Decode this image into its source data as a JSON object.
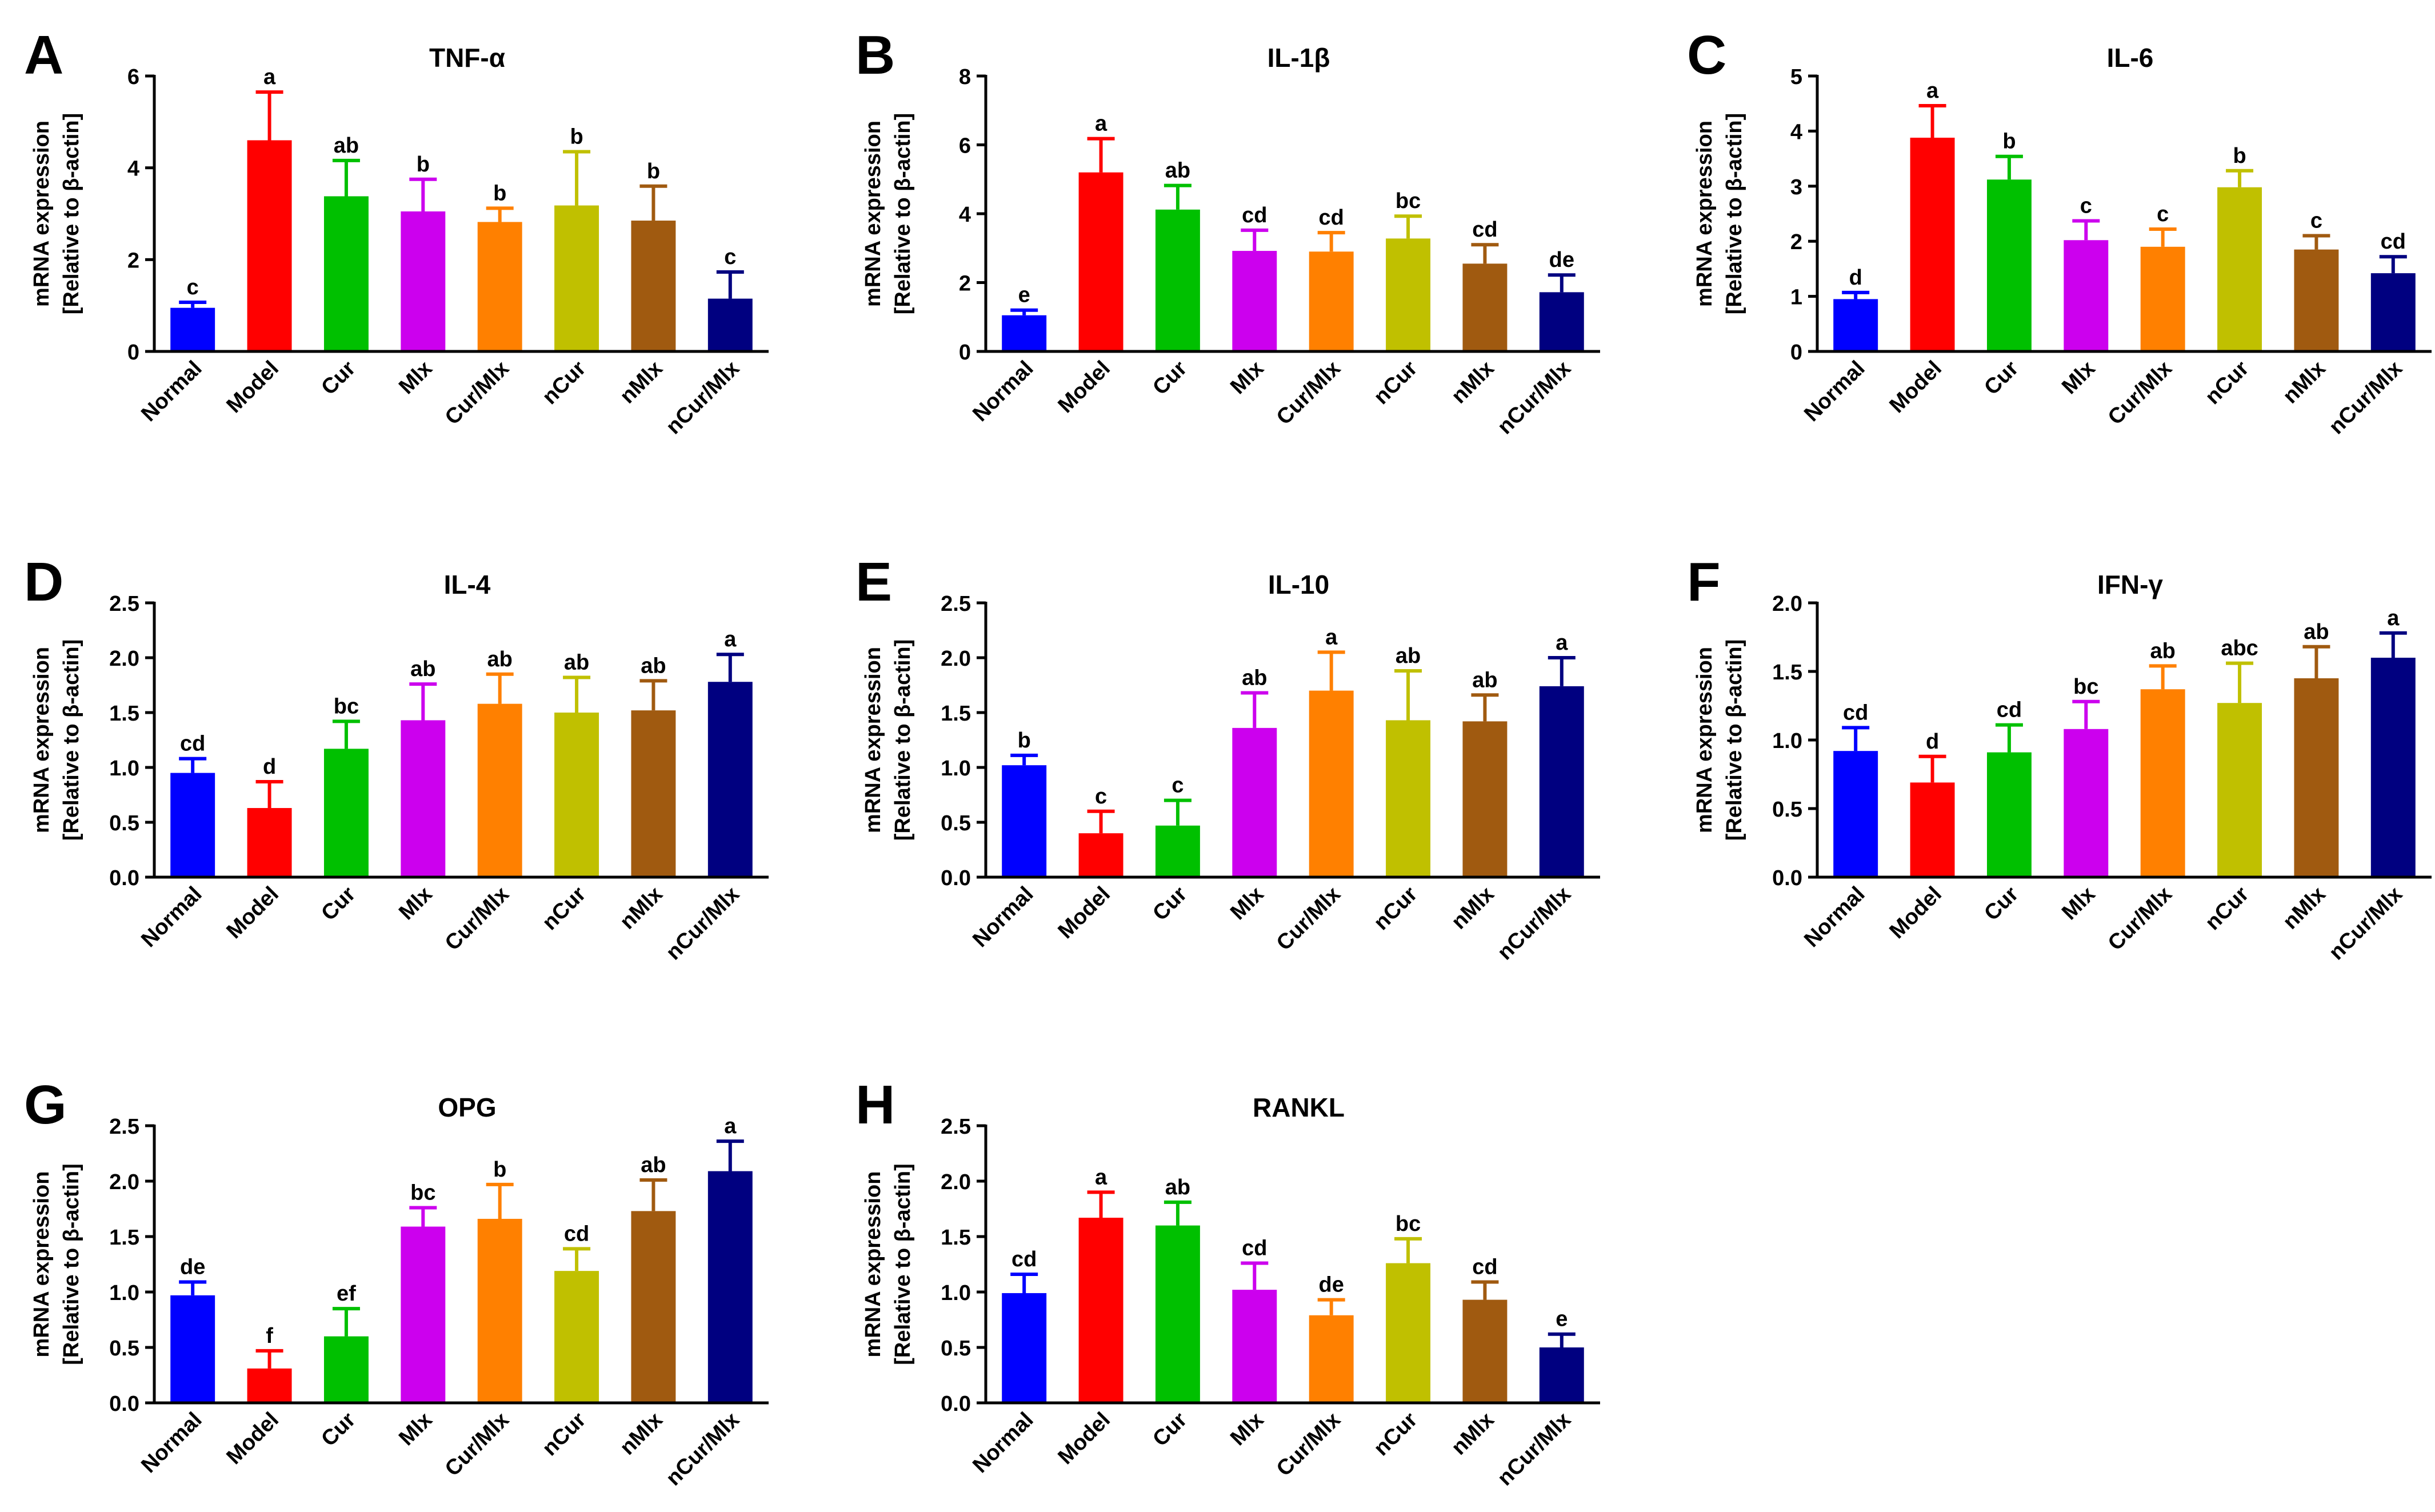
{
  "figure": {
    "description_categories": [
      "Normal",
      "Model",
      "Cur",
      "Mlx",
      "Cur/Mlx",
      "nCur",
      "nMlx",
      "nCur/Mlx"
    ],
    "bar_colors": [
      "#0000FF",
      "#FF0000",
      "#00C000",
      "#CC00EE",
      "#FF8000",
      "#C0C000",
      "#A05A10",
      "#000080"
    ]
  },
  "chart_data": [
    {
      "type": "bar",
      "panel": "A",
      "title": "TNF-α",
      "ylabel": [
        "mRNA expression",
        "[Relative to β-actin]"
      ],
      "categories": [
        "Normal",
        "Model",
        "Cur",
        "Mlx",
        "Cur/Mlx",
        "nCur",
        "nMlx",
        "nCur/Mlx"
      ],
      "ylim": [
        0,
        6
      ],
      "yticks": [
        0,
        2,
        4,
        6
      ],
      "ytick_labels": [
        "0",
        "2",
        "4",
        "6"
      ],
      "values": [
        0.95,
        4.6,
        3.38,
        3.05,
        2.82,
        3.18,
        2.85,
        1.15
      ],
      "errors": [
        0.12,
        1.05,
        0.78,
        0.7,
        0.3,
        1.17,
        0.75,
        0.58
      ],
      "letters": [
        "c",
        "a",
        "ab",
        "b",
        "b",
        "b",
        "b",
        "c"
      ]
    },
    {
      "type": "bar",
      "panel": "B",
      "title": "IL-1β",
      "ylabel": [
        "mRNA expression",
        "[Relative to β-actin]"
      ],
      "categories": [
        "Normal",
        "Model",
        "Cur",
        "Mlx",
        "Cur/Mlx",
        "nCur",
        "nMlx",
        "nCur/Mlx"
      ],
      "ylim": [
        0,
        8
      ],
      "yticks": [
        0,
        2,
        4,
        6,
        8
      ],
      "ytick_labels": [
        "0",
        "2",
        "4",
        "6",
        "8"
      ],
      "values": [
        1.05,
        5.2,
        4.12,
        2.92,
        2.9,
        3.28,
        2.55,
        1.72
      ],
      "errors": [
        0.15,
        0.98,
        0.7,
        0.6,
        0.55,
        0.65,
        0.55,
        0.5
      ],
      "letters": [
        "e",
        "a",
        "ab",
        "cd",
        "cd",
        "bc",
        "cd",
        "de"
      ]
    },
    {
      "type": "bar",
      "panel": "C",
      "title": "IL-6",
      "ylabel": [
        "mRNA expression",
        "[Relative to β-actin]"
      ],
      "categories": [
        "Normal",
        "Model",
        "Cur",
        "Mlx",
        "Cur/Mlx",
        "nCur",
        "nMlx",
        "nCur/Mlx"
      ],
      "ylim": [
        0,
        5
      ],
      "yticks": [
        0,
        1,
        2,
        3,
        4,
        5
      ],
      "ytick_labels": [
        "0",
        "1",
        "2",
        "3",
        "4",
        "5"
      ],
      "values": [
        0.95,
        3.88,
        3.12,
        2.02,
        1.9,
        2.98,
        1.85,
        1.42
      ],
      "errors": [
        0.12,
        0.58,
        0.42,
        0.35,
        0.32,
        0.3,
        0.25,
        0.3
      ],
      "letters": [
        "d",
        "a",
        "b",
        "c",
        "c",
        "b",
        "c",
        "cd"
      ]
    },
    {
      "type": "bar",
      "panel": "D",
      "title": "IL-4",
      "ylabel": [
        "mRNA expression",
        "[Relative to β-actin]"
      ],
      "categories": [
        "Normal",
        "Model",
        "Cur",
        "Mlx",
        "Cur/Mlx",
        "nCur",
        "nMlx",
        "nCur/Mlx"
      ],
      "ylim": [
        0,
        2.5
      ],
      "yticks": [
        0,
        0.5,
        1,
        1.5,
        2,
        2.5
      ],
      "ytick_labels": [
        "0.0",
        "0.5",
        "1.0",
        "1.5",
        "2.0",
        "2.5"
      ],
      "values": [
        0.95,
        0.63,
        1.17,
        1.43,
        1.58,
        1.5,
        1.52,
        1.78
      ],
      "errors": [
        0.13,
        0.24,
        0.25,
        0.33,
        0.27,
        0.32,
        0.27,
        0.25
      ],
      "letters": [
        "cd",
        "d",
        "bc",
        "ab",
        "ab",
        "ab",
        "ab",
        "a"
      ]
    },
    {
      "type": "bar",
      "panel": "E",
      "title": "IL-10",
      "ylabel": [
        "mRNA expression",
        "[Relative to β-actin]"
      ],
      "categories": [
        "Normal",
        "Model",
        "Cur",
        "Mlx",
        "Cur/Mlx",
        "nCur",
        "nMlx",
        "nCur/Mlx"
      ],
      "ylim": [
        0,
        2.5
      ],
      "yticks": [
        0,
        0.5,
        1,
        1.5,
        2,
        2.5
      ],
      "ytick_labels": [
        "0.0",
        "0.5",
        "1.0",
        "1.5",
        "2.0",
        "2.5"
      ],
      "values": [
        1.02,
        0.4,
        0.47,
        1.36,
        1.7,
        1.43,
        1.42,
        1.74
      ],
      "errors": [
        0.09,
        0.2,
        0.23,
        0.32,
        0.35,
        0.45,
        0.24,
        0.26
      ],
      "letters": [
        "b",
        "c",
        "c",
        "ab",
        "a",
        "ab",
        "ab",
        "a"
      ]
    },
    {
      "type": "bar",
      "panel": "F",
      "title": "IFN-γ",
      "ylabel": [
        "mRNA expression",
        "[Relative to β-actin]"
      ],
      "categories": [
        "Normal",
        "Model",
        "Cur",
        "Mlx",
        "Cur/Mlx",
        "nCur",
        "nMlx",
        "nCur/Mlx"
      ],
      "ylim": [
        0,
        2
      ],
      "yticks": [
        0,
        0.5,
        1,
        1.5,
        2
      ],
      "ytick_labels": [
        "0.0",
        "0.5",
        "1.0",
        "1.5",
        "2.0"
      ],
      "values": [
        0.92,
        0.69,
        0.91,
        1.08,
        1.37,
        1.27,
        1.45,
        1.6
      ],
      "errors": [
        0.17,
        0.19,
        0.2,
        0.2,
        0.17,
        0.29,
        0.23,
        0.18
      ],
      "letters": [
        "cd",
        "d",
        "cd",
        "bc",
        "ab",
        "abc",
        "ab",
        "a"
      ]
    },
    {
      "type": "bar",
      "panel": "G",
      "title": "OPG",
      "ylabel": [
        "mRNA expression",
        "[Relative to β-actin]"
      ],
      "categories": [
        "Normal",
        "Model",
        "Cur",
        "Mlx",
        "Cur/Mlx",
        "nCur",
        "nMlx",
        "nCur/Mlx"
      ],
      "ylim": [
        0,
        2.5
      ],
      "yticks": [
        0,
        0.5,
        1,
        1.5,
        2,
        2.5
      ],
      "ytick_labels": [
        "0.0",
        "0.5",
        "1.0",
        "1.5",
        "2.0",
        "2.5"
      ],
      "values": [
        0.97,
        0.31,
        0.6,
        1.59,
        1.66,
        1.19,
        1.73,
        2.09
      ],
      "errors": [
        0.12,
        0.16,
        0.25,
        0.17,
        0.31,
        0.2,
        0.28,
        0.27
      ],
      "letters": [
        "de",
        "f",
        "ef",
        "bc",
        "b",
        "cd",
        "ab",
        "a"
      ]
    },
    {
      "type": "bar",
      "panel": "H",
      "title": "RANKL",
      "ylabel": [
        "mRNA expression",
        "[Relative to β-actin]"
      ],
      "categories": [
        "Normal",
        "Model",
        "Cur",
        "Mlx",
        "Cur/Mlx",
        "nCur",
        "nMlx",
        "nCur/Mlx"
      ],
      "ylim": [
        0,
        2.5
      ],
      "yticks": [
        0,
        0.5,
        1,
        1.5,
        2,
        2.5
      ],
      "ytick_labels": [
        "0.0",
        "0.5",
        "1.0",
        "1.5",
        "2.0",
        "2.5"
      ],
      "values": [
        0.99,
        1.67,
        1.6,
        1.02,
        0.79,
        1.26,
        0.93,
        0.5
      ],
      "errors": [
        0.17,
        0.23,
        0.21,
        0.24,
        0.14,
        0.22,
        0.16,
        0.12
      ],
      "letters": [
        "cd",
        "a",
        "ab",
        "cd",
        "de",
        "bc",
        "cd",
        "e"
      ]
    }
  ]
}
